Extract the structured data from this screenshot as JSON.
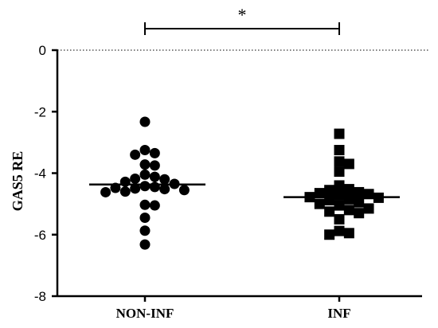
{
  "chart_data": {
    "type": "scatter",
    "title": "",
    "xlabel": "",
    "ylabel": "GAS5 RE",
    "ylim": [
      -8,
      0
    ],
    "yticks": [
      0,
      -2,
      -4,
      -6,
      -8
    ],
    "reference_line": {
      "y": 0,
      "style": "dotted"
    },
    "categories": [
      "NON-INF",
      "INF"
    ],
    "significance": {
      "label": "*",
      "from": "NON-INF",
      "to": "INF"
    },
    "series": [
      {
        "category": "NON-INF",
        "marker": "circle",
        "mean": -4.37,
        "values": [
          -2.33,
          -3.25,
          -3.4,
          -3.35,
          -3.72,
          -3.75,
          -4.05,
          -4.12,
          -4.18,
          -4.2,
          -4.28,
          -4.35,
          -4.42,
          -4.45,
          -4.48,
          -4.5,
          -4.52,
          -4.55,
          -4.6,
          -4.62,
          -5.03,
          -5.05,
          -5.45,
          -5.87,
          -6.32
        ]
      },
      {
        "category": "INF",
        "marker": "square",
        "mean": -4.78,
        "values": [
          -2.72,
          -3.25,
          -3.62,
          -3.7,
          -3.95,
          -4.4,
          -4.52,
          -4.55,
          -4.62,
          -4.65,
          -4.68,
          -4.72,
          -4.78,
          -4.8,
          -4.85,
          -4.88,
          -4.95,
          -5.0,
          -5.05,
          -5.15,
          -5.2,
          -5.25,
          -5.3,
          -5.5,
          -5.88,
          -6.0,
          -5.95
        ]
      }
    ]
  }
}
